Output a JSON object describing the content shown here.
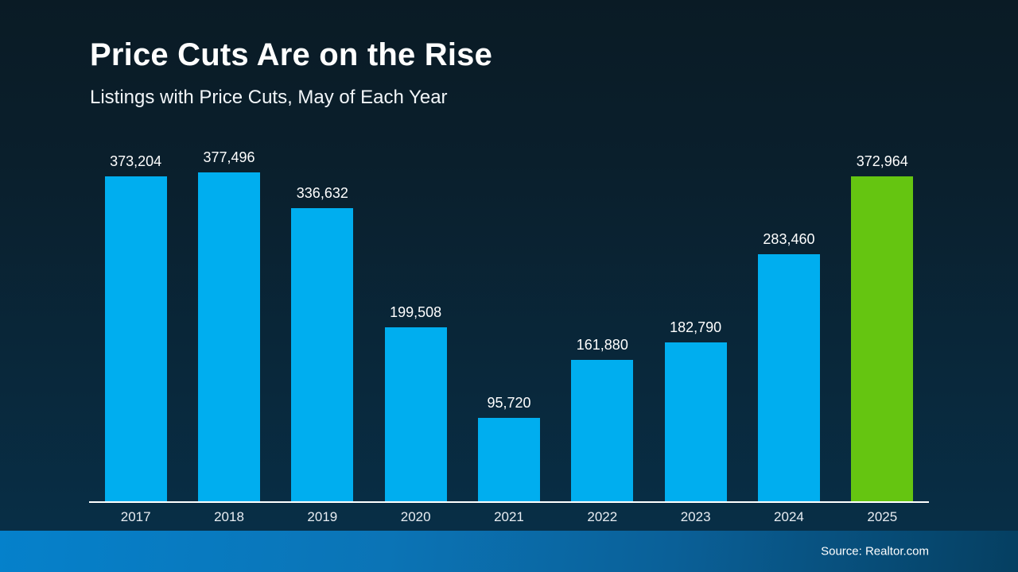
{
  "slide": {
    "title": "Price Cuts Are on the Rise",
    "subtitle": "Listings with Price Cuts, May of Each Year",
    "source": "Source: Realtor.com"
  },
  "colors": {
    "bar_blue": "#00AEEF",
    "bar_green_highlight": "#65C511",
    "axis_line": "#FFFFFF",
    "background_top": "#0A1B25",
    "background_bottom": "#083049",
    "footer_gradient_left": "#0581CB",
    "footer_gradient_right": "#053F61",
    "text": "#FFFFFF"
  },
  "chart_data": {
    "type": "bar",
    "title": "Price Cuts Are on the Rise",
    "subtitle": "Listings with Price Cuts, May of Each Year",
    "categories": [
      "2017",
      "2018",
      "2019",
      "2020",
      "2021",
      "2022",
      "2023",
      "2024",
      "2025"
    ],
    "values": [
      373204,
      377496,
      336632,
      199508,
      95720,
      161880,
      182790,
      283460,
      372964
    ],
    "value_labels": [
      "373,204",
      "377,496",
      "336,632",
      "199,508",
      "95,720",
      "161,880",
      "182,790",
      "283,460",
      "372,964"
    ],
    "highlight_category": "2025",
    "xlabel": "",
    "ylabel": "",
    "ylim": [
      0,
      377496
    ],
    "grid": false,
    "legend": "none",
    "source": "Source: Realtor.com"
  }
}
